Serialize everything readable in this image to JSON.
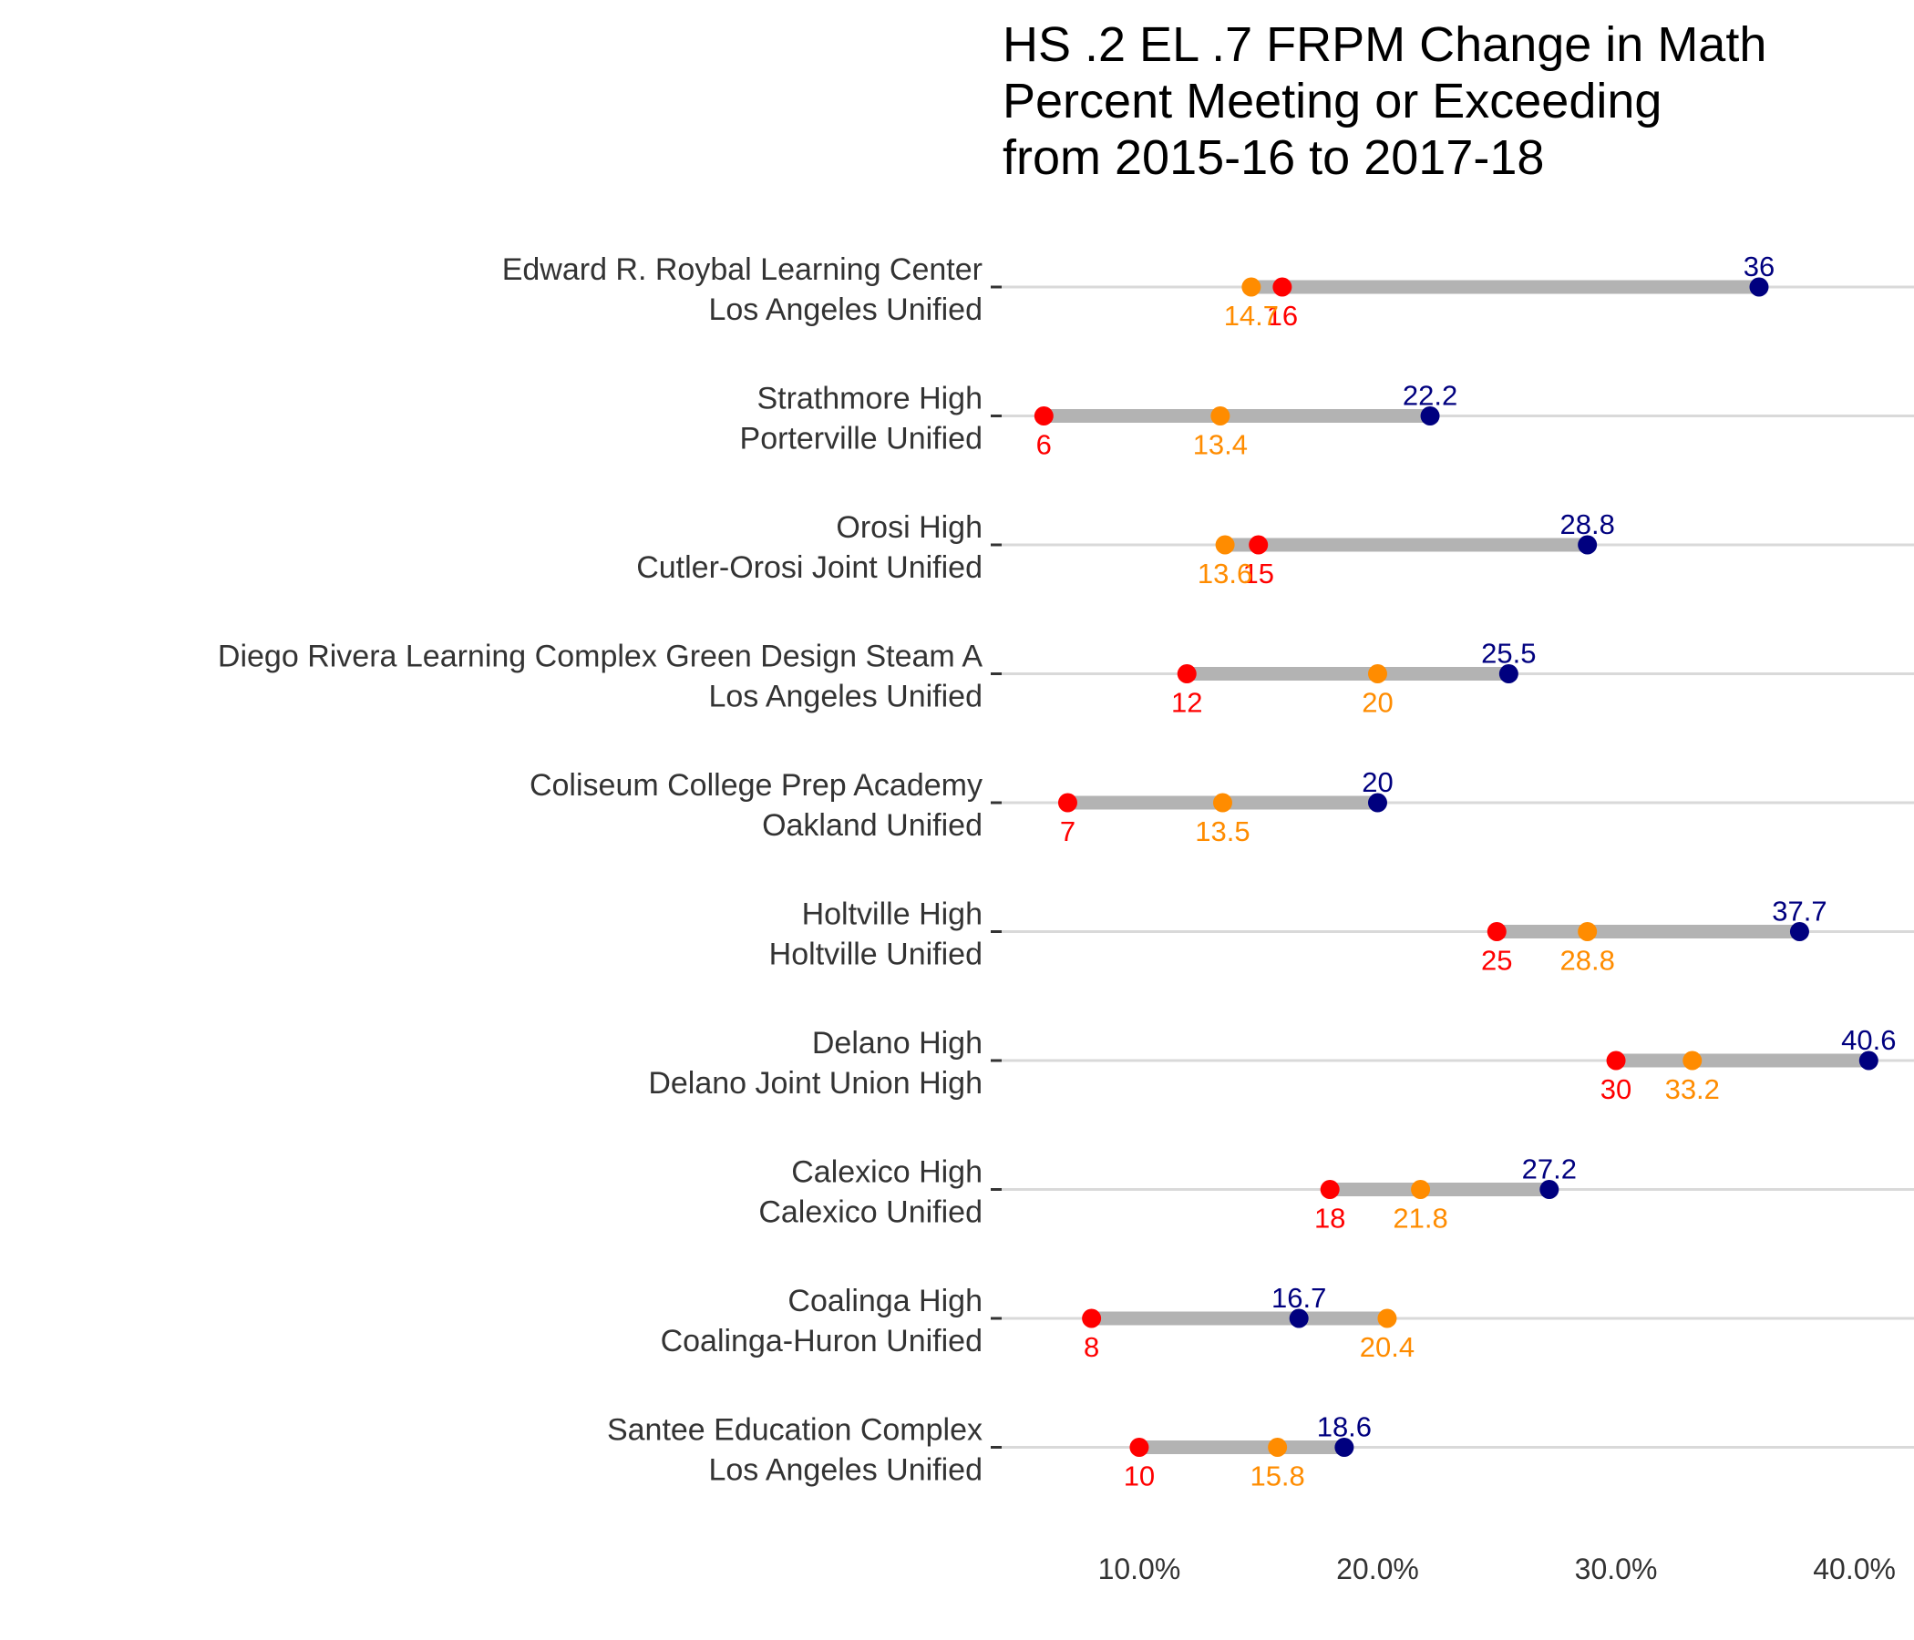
{
  "chart_data": {
    "type": "dumbbell",
    "title": [
      "HS .2 EL .7 FRPM Change in Math",
      "Percent Meeting or Exceeding",
      "from 2015-16 to 2017-18"
    ],
    "xlabel": "",
    "ylabel": "",
    "xlim": [
      4,
      42.5
    ],
    "x_ticks": [
      10,
      20,
      30,
      40
    ],
    "x_tick_labels": [
      "10.0%",
      "20.0%",
      "30.0%",
      "40.0%"
    ],
    "grid": "horizontal",
    "legend": "none",
    "colors": {
      "red": "#ff0000",
      "orange": "#ff8c00",
      "navy": "#00007f",
      "bar": "#b3b3b3",
      "grid": "#d9d9d9",
      "text": "#333333"
    },
    "schools": [
      {
        "school": "Edward R. Roybal Learning Center",
        "district": "Los Angeles Unified",
        "red": 16,
        "orange": 14.7,
        "navy": 36
      },
      {
        "school": "Strathmore High",
        "district": "Porterville Unified",
        "red": 6,
        "orange": 13.4,
        "navy": 22.2
      },
      {
        "school": "Orosi High",
        "district": "Cutler-Orosi Joint Unified",
        "red": 15,
        "orange": 13.6,
        "navy": 28.8
      },
      {
        "school": "Diego Rivera Learning Complex Green Design Steam A",
        "district": "Los Angeles Unified",
        "red": 12,
        "orange": 20,
        "navy": 25.5
      },
      {
        "school": "Coliseum College Prep Academy",
        "district": "Oakland Unified",
        "red": 7,
        "orange": 13.5,
        "navy": 20
      },
      {
        "school": "Holtville High",
        "district": "Holtville Unified",
        "red": 25,
        "orange": 28.8,
        "navy": 37.7
      },
      {
        "school": "Delano High",
        "district": "Delano Joint Union High",
        "red": 30,
        "orange": 33.2,
        "navy": 40.6
      },
      {
        "school": "Calexico High",
        "district": "Calexico Unified",
        "red": 18,
        "orange": 21.8,
        "navy": 27.2
      },
      {
        "school": "Coalinga High",
        "district": "Coalinga-Huron Unified",
        "red": 8,
        "orange": 20.4,
        "navy": 16.7
      },
      {
        "school": "Santee Education Complex",
        "district": "Los Angeles Unified",
        "red": 10,
        "orange": 15.8,
        "navy": 18.6
      }
    ]
  }
}
